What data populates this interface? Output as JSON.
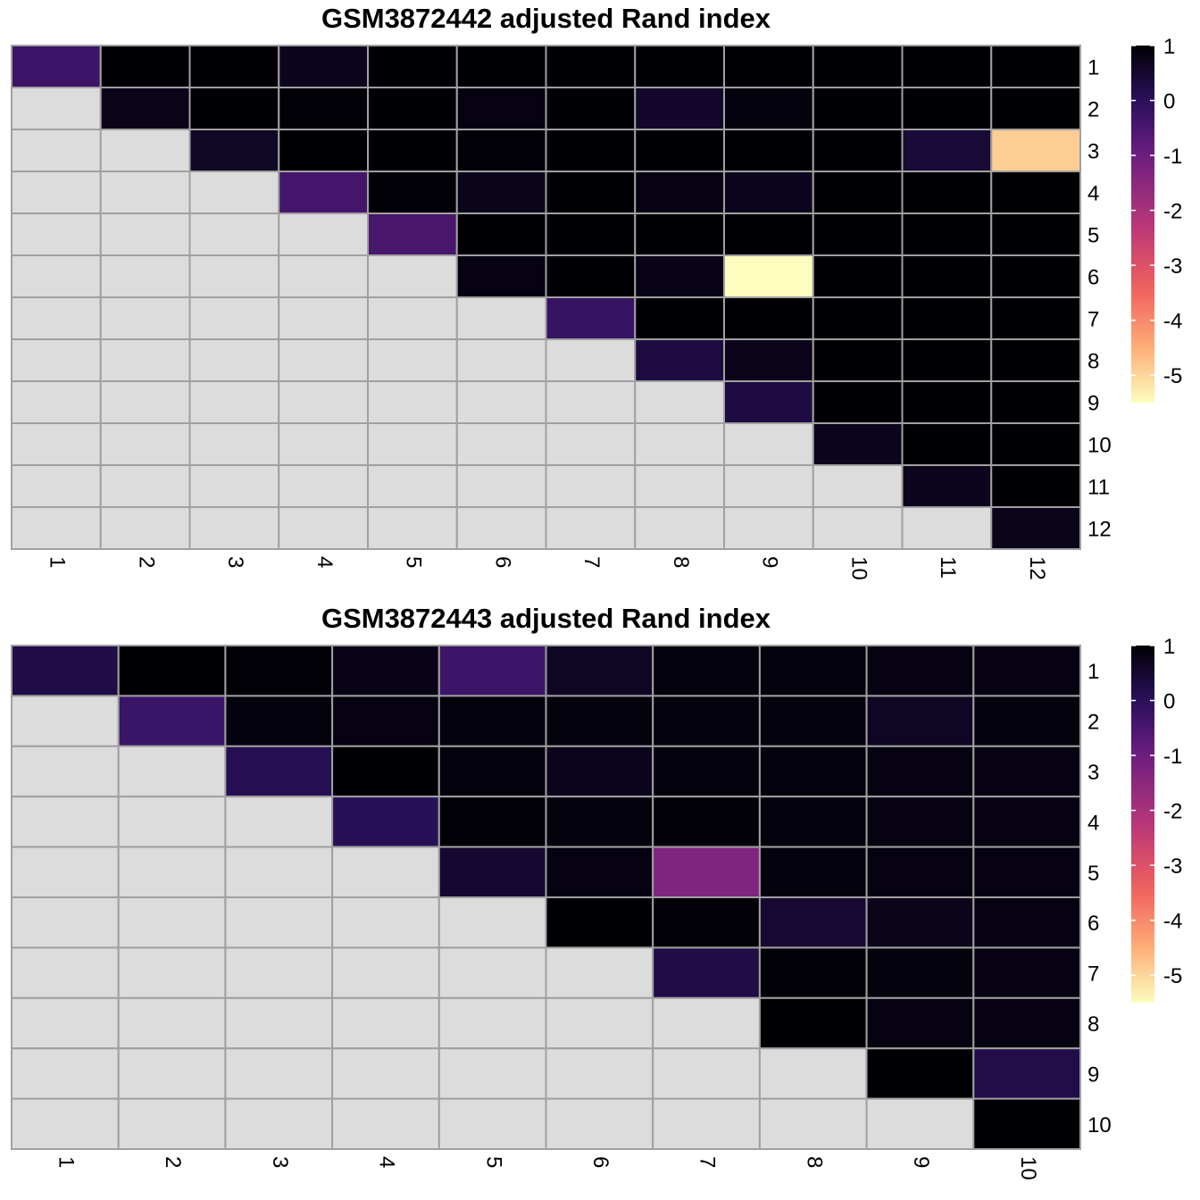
{
  "chart_data": [
    {
      "type": "heatmap",
      "title": "GSM3872442 adjusted Rand index",
      "row_labels": [
        "1",
        "2",
        "3",
        "4",
        "5",
        "6",
        "7",
        "8",
        "9",
        "10",
        "11",
        "12"
      ],
      "col_labels": [
        "1",
        "2",
        "3",
        "4",
        "5",
        "6",
        "7",
        "8",
        "9",
        "10",
        "11",
        "12"
      ],
      "colorbar": {
        "ticks": [
          "1",
          "0",
          "-1",
          "-2",
          "-3",
          "-4",
          "-5"
        ],
        "range": [
          -5.5,
          1
        ]
      },
      "values": [
        [
          -0.3,
          1.0,
          1.0,
          0.7,
          1.0,
          1.0,
          1.0,
          1.0,
          1.0,
          1.0,
          1.0,
          1.0
        ],
        [
          null,
          0.75,
          1.0,
          0.95,
          1.0,
          0.85,
          1.0,
          0.55,
          0.9,
          1.0,
          1.0,
          1.0
        ],
        [
          null,
          null,
          0.6,
          1.0,
          1.0,
          0.95,
          1.0,
          1.0,
          1.0,
          1.0,
          0.4,
          -4.9
        ],
        [
          null,
          null,
          null,
          -0.4,
          0.95,
          0.75,
          1.0,
          0.85,
          0.7,
          1.0,
          1.0,
          1.0
        ],
        [
          null,
          null,
          null,
          null,
          -0.45,
          1.0,
          1.0,
          1.0,
          1.0,
          1.0,
          1.0,
          1.0
        ],
        [
          null,
          null,
          null,
          null,
          null,
          0.85,
          1.0,
          0.8,
          -5.5,
          1.0,
          1.0,
          1.0
        ],
        [
          null,
          null,
          null,
          null,
          null,
          null,
          -0.2,
          1.0,
          1.0,
          1.0,
          1.0,
          1.0
        ],
        [
          null,
          null,
          null,
          null,
          null,
          null,
          null,
          0.3,
          0.75,
          1.0,
          1.0,
          1.0
        ],
        [
          null,
          null,
          null,
          null,
          null,
          null,
          null,
          null,
          0.3,
          1.0,
          1.0,
          1.0
        ],
        [
          null,
          null,
          null,
          null,
          null,
          null,
          null,
          null,
          null,
          0.7,
          1.0,
          1.0
        ],
        [
          null,
          null,
          null,
          null,
          null,
          null,
          null,
          null,
          null,
          null,
          0.7,
          1.0
        ],
        [
          null,
          null,
          null,
          null,
          null,
          null,
          null,
          null,
          null,
          null,
          null,
          0.75
        ]
      ]
    },
    {
      "type": "heatmap",
      "title": "GSM3872443 adjusted Rand index",
      "row_labels": [
        "1",
        "2",
        "3",
        "4",
        "5",
        "6",
        "7",
        "8",
        "9",
        "10"
      ],
      "col_labels": [
        "1",
        "2",
        "3",
        "4",
        "5",
        "6",
        "7",
        "8",
        "9",
        "10"
      ],
      "colorbar": {
        "ticks": [
          "1",
          "0",
          "-1",
          "-2",
          "-3",
          "-4",
          "-5"
        ],
        "range": [
          -5.5,
          1
        ]
      },
      "values": [
        [
          0.25,
          1.0,
          0.95,
          0.8,
          -0.3,
          0.65,
          0.9,
          0.9,
          0.85,
          0.85
        ],
        [
          null,
          -0.25,
          0.9,
          0.85,
          0.9,
          0.9,
          0.9,
          0.9,
          0.65,
          0.9
        ],
        [
          null,
          null,
          0.1,
          1.0,
          0.9,
          0.7,
          0.9,
          0.9,
          0.85,
          0.85
        ],
        [
          null,
          null,
          null,
          0.05,
          0.95,
          0.9,
          0.95,
          0.9,
          0.85,
          0.85
        ],
        [
          null,
          null,
          null,
          null,
          0.5,
          0.85,
          -1.3,
          0.9,
          0.85,
          0.85
        ],
        [
          null,
          null,
          null,
          null,
          null,
          1.0,
          0.95,
          0.45,
          0.75,
          0.85
        ],
        [
          null,
          null,
          null,
          null,
          null,
          null,
          0.25,
          0.95,
          0.9,
          0.85
        ],
        [
          null,
          null,
          null,
          null,
          null,
          null,
          null,
          1.0,
          0.85,
          0.85
        ],
        [
          null,
          null,
          null,
          null,
          null,
          null,
          null,
          null,
          1.0,
          0.2
        ],
        [
          null,
          null,
          null,
          null,
          null,
          null,
          null,
          null,
          null,
          1.0
        ]
      ]
    }
  ]
}
